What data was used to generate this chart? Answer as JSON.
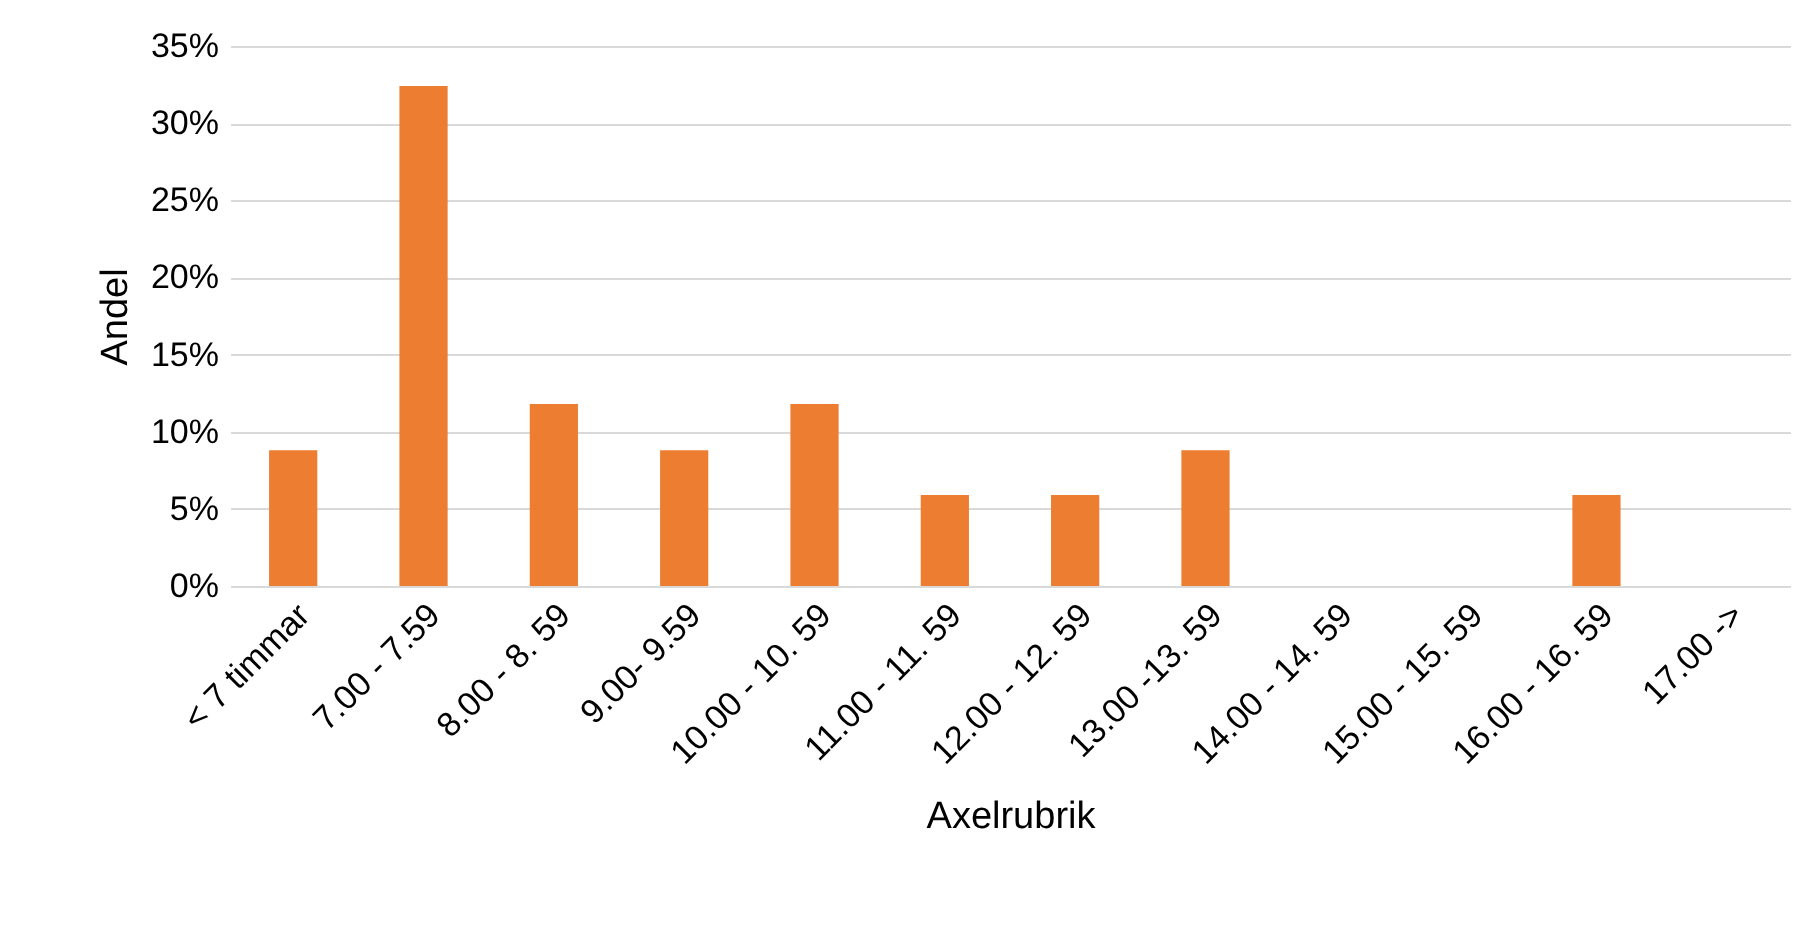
{
  "chart_data": {
    "type": "bar",
    "xlabel": "Axelrubrik",
    "ylabel": "Andel",
    "categories": [
      "< 7 timmar",
      "7.00 - 7.59",
      "8.00 - 8. 59",
      "9.00- 9.59",
      "10.00 - 10. 59",
      "11.00 - 11. 59",
      "12.00 - 12. 59",
      "13.00 -13. 59",
      "14.00 - 14. 59",
      "15.00 - 15. 59",
      "16.00 - 16. 59",
      "17.00 ->"
    ],
    "values": [
      8.8,
      32.4,
      11.8,
      8.8,
      11.8,
      5.9,
      5.9,
      8.8,
      0,
      0,
      5.9,
      0
    ],
    "color": "#ed7d31",
    "ylim": [
      0,
      35
    ],
    "yticks": [
      {
        "value": 0,
        "label": "0%"
      },
      {
        "value": 5,
        "label": "5%"
      },
      {
        "value": 10,
        "label": "10%"
      },
      {
        "value": 15,
        "label": "15%"
      },
      {
        "value": 20,
        "label": "20%"
      },
      {
        "value": 25,
        "label": "25%"
      },
      {
        "value": 30,
        "label": "30%"
      },
      {
        "value": 35,
        "label": "35%"
      }
    ],
    "grid": "y"
  }
}
